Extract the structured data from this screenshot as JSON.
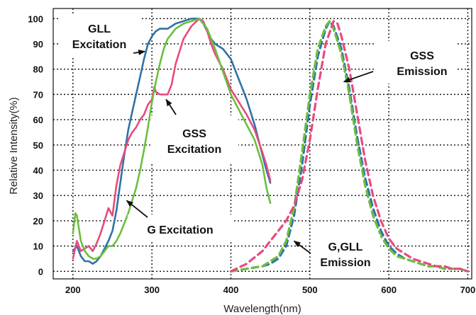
{
  "chart_data": {
    "type": "line",
    "xlabel": "Wavelength(nm)",
    "ylabel": "Relative Intensity(%)",
    "xlim": [
      175,
      705
    ],
    "ylim": [
      -3,
      104
    ],
    "x_ticks": [
      200,
      300,
      400,
      500,
      600,
      700
    ],
    "y_ticks": [
      0,
      10,
      20,
      30,
      40,
      50,
      60,
      70,
      80,
      90,
      100
    ],
    "grid": true,
    "colors": {
      "blue": "#2f72a8",
      "red": "#e94a7e",
      "green": "#6bbf3e"
    },
    "series": [
      {
        "color": "blue",
        "style": "solid",
        "group": "excitation",
        "x": [
          200,
          205,
          210,
          215,
          220,
          225,
          230,
          235,
          240,
          245,
          250,
          255,
          260,
          265,
          270,
          275,
          280,
          285,
          290,
          295,
          300,
          305,
          310,
          315,
          320,
          325,
          330,
          340,
          350,
          360,
          365,
          370,
          375,
          380,
          385,
          390,
          395,
          400,
          405,
          410,
          415,
          420,
          425,
          430,
          435,
          440,
          445,
          450
        ],
        "y": [
          8,
          10,
          6,
          4,
          4,
          3,
          4,
          6,
          9,
          12,
          16,
          24,
          35,
          46,
          56,
          63,
          70,
          77,
          84,
          90,
          93,
          95,
          96,
          96,
          96,
          97,
          98,
          99,
          100,
          100,
          98,
          95,
          92,
          90,
          89,
          88,
          86,
          84,
          80,
          76,
          72,
          68,
          63,
          58,
          52,
          46,
          40,
          35
        ]
      },
      {
        "color": "red",
        "style": "solid",
        "group": "excitation",
        "x": [
          200,
          205,
          210,
          215,
          220,
          225,
          230,
          235,
          240,
          245,
          250,
          255,
          260,
          265,
          270,
          275,
          280,
          285,
          290,
          295,
          300,
          303,
          305,
          310,
          315,
          320,
          325,
          330,
          340,
          350,
          360,
          365,
          370,
          375,
          380,
          390,
          400,
          410,
          420,
          430,
          440,
          445,
          450
        ],
        "y": [
          5,
          12,
          8,
          9,
          10,
          8,
          11,
          15,
          20,
          25,
          22,
          34,
          42,
          47,
          52,
          55,
          57,
          60,
          62,
          66,
          68,
          73,
          71,
          70,
          70,
          70,
          74,
          82,
          92,
          97,
          100,
          99,
          95,
          90,
          86,
          80,
          72,
          67,
          62,
          56,
          47,
          42,
          36
        ]
      },
      {
        "color": "green",
        "style": "solid",
        "group": "excitation",
        "x": [
          200,
          203,
          205,
          210,
          215,
          220,
          225,
          230,
          235,
          240,
          245,
          250,
          255,
          260,
          265,
          270,
          275,
          280,
          285,
          290,
          295,
          300,
          305,
          310,
          315,
          320,
          325,
          330,
          335,
          340,
          350,
          360,
          370,
          380,
          390,
          400,
          410,
          420,
          430,
          440,
          445,
          450
        ],
        "y": [
          15,
          23,
          22,
          12,
          8,
          6,
          5,
          5,
          6,
          8,
          10,
          10,
          12,
          15,
          19,
          23,
          28,
          33,
          40,
          48,
          57,
          67,
          75,
          82,
          88,
          92,
          94,
          96,
          97,
          98,
          99,
          100,
          96,
          88,
          79,
          70,
          64,
          58,
          52,
          42,
          33,
          27
        ]
      },
      {
        "color": "blue",
        "style": "dashed",
        "group": "emission",
        "x": [
          400,
          420,
          440,
          450,
          460,
          470,
          480,
          490,
          500,
          510,
          520,
          525,
          530,
          540,
          550,
          560,
          570,
          580,
          590,
          600,
          610,
          620,
          630,
          640,
          650,
          660,
          670,
          680,
          690,
          700
        ],
        "y": [
          0,
          1,
          2,
          3,
          5,
          10,
          22,
          42,
          66,
          85,
          96,
          99,
          97,
          88,
          72,
          53,
          37,
          25,
          16,
          10,
          7,
          5,
          4,
          3,
          2,
          2,
          1,
          1,
          1,
          0
        ]
      },
      {
        "color": "green",
        "style": "dashed",
        "group": "emission",
        "x": [
          400,
          420,
          440,
          450,
          460,
          470,
          480,
          490,
          500,
          510,
          520,
          525,
          530,
          540,
          550,
          560,
          570,
          580,
          590,
          600,
          610,
          620,
          630,
          640,
          650,
          660,
          670,
          680,
          690,
          700
        ],
        "y": [
          0,
          1,
          2,
          4,
          6,
          12,
          25,
          47,
          70,
          88,
          97,
          99,
          96,
          86,
          70,
          50,
          34,
          22,
          14,
          9,
          6,
          5,
          4,
          3,
          2,
          2,
          1,
          1,
          1,
          0
        ]
      },
      {
        "color": "red",
        "style": "dashed",
        "group": "emission",
        "x": [
          400,
          420,
          440,
          450,
          460,
          470,
          480,
          490,
          500,
          510,
          520,
          530,
          535,
          540,
          550,
          560,
          570,
          580,
          590,
          600,
          610,
          620,
          630,
          640,
          650,
          660,
          670,
          680,
          690,
          700
        ],
        "y": [
          0,
          3,
          8,
          12,
          16,
          20,
          26,
          36,
          52,
          72,
          90,
          99,
          98,
          93,
          80,
          62,
          44,
          30,
          20,
          13,
          9,
          7,
          5,
          4,
          3,
          2,
          2,
          1,
          1,
          0
        ]
      }
    ],
    "annotations": [
      {
        "lines": [
          "GLL",
          "Excitation"
        ],
        "pointer_color": "blue",
        "arrow_target": {
          "x": 291,
          "y": 87
        }
      },
      {
        "lines": [
          "GSS",
          "Excitation"
        ],
        "pointer_color": "red",
        "arrow_target": {
          "x": 318,
          "y": 68
        }
      },
      {
        "lines": [
          "G Excitation"
        ],
        "pointer_color": "green",
        "arrow_target": {
          "x": 268,
          "y": 28
        }
      },
      {
        "lines": [
          "GSS",
          "Emission"
        ],
        "pointer_color": "red",
        "arrow_target": {
          "x": 543,
          "y": 75
        }
      },
      {
        "lines": [
          "G,GLL",
          "Emission"
        ],
        "pointer_color": "blue",
        "arrow_target": {
          "x": 480,
          "y": 12
        }
      }
    ]
  }
}
